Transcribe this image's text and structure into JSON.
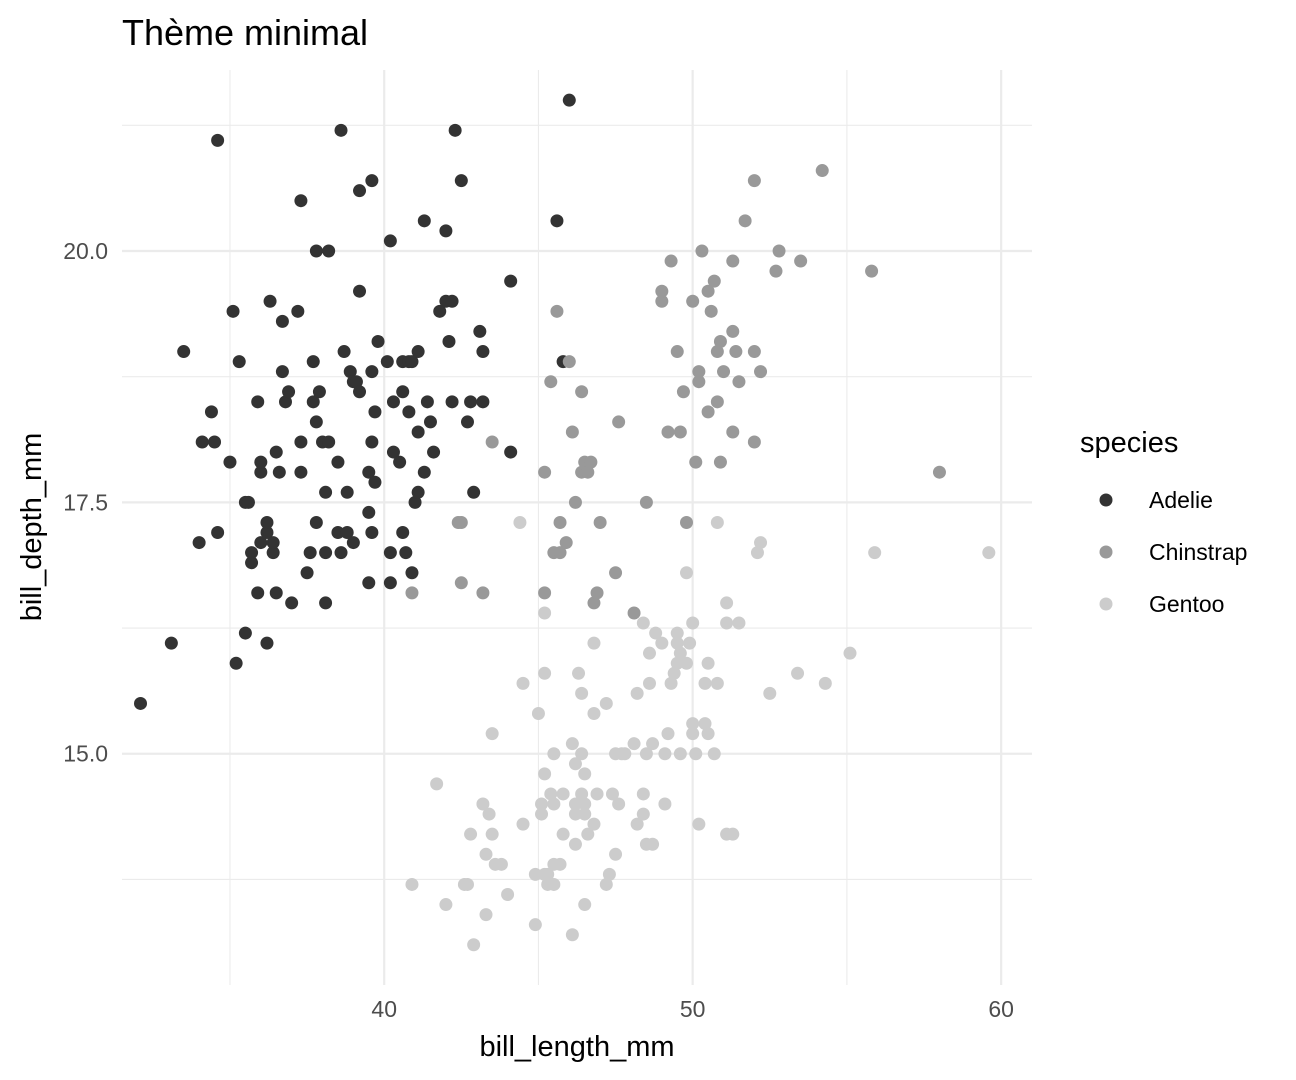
{
  "chart_data": {
    "type": "scatter",
    "title": "Thème minimal",
    "xlabel": "bill_length_mm",
    "ylabel": "bill_depth_mm",
    "xlim": [
      31.5,
      61
    ],
    "ylim": [
      12.7,
      21.8
    ],
    "x_ticks": [
      40,
      50,
      60
    ],
    "x_tick_labels": [
      "40",
      "50",
      "60"
    ],
    "y_ticks": [
      15,
      17.5,
      20
    ],
    "y_tick_labels": [
      "15.0",
      "17.5",
      "20.0"
    ],
    "grid": true,
    "legend": {
      "title": "species",
      "position": "right"
    },
    "series": [
      {
        "name": "Adelie",
        "color": "#333333",
        "points": [
          [
            32.1,
            15.5
          ],
          [
            33.1,
            16.1
          ],
          [
            33.5,
            19.0
          ],
          [
            34.0,
            17.1
          ],
          [
            34.1,
            18.1
          ],
          [
            34.4,
            18.4
          ],
          [
            34.5,
            18.1
          ],
          [
            34.6,
            17.2
          ],
          [
            34.6,
            21.1
          ],
          [
            35.0,
            17.9
          ],
          [
            35.1,
            19.4
          ],
          [
            35.2,
            15.9
          ],
          [
            35.3,
            18.9
          ],
          [
            35.5,
            16.2
          ],
          [
            35.5,
            17.5
          ],
          [
            35.6,
            17.5
          ],
          [
            35.7,
            16.9
          ],
          [
            35.7,
            17.0
          ],
          [
            35.9,
            16.6
          ],
          [
            35.9,
            18.5
          ],
          [
            36.0,
            17.1
          ],
          [
            36.0,
            17.8
          ],
          [
            36.0,
            17.9
          ],
          [
            36.2,
            16.1
          ],
          [
            36.2,
            17.2
          ],
          [
            36.2,
            17.3
          ],
          [
            36.3,
            19.5
          ],
          [
            36.4,
            17.0
          ],
          [
            36.4,
            17.1
          ],
          [
            36.5,
            16.6
          ],
          [
            36.5,
            18.0
          ],
          [
            36.6,
            17.8
          ],
          [
            36.7,
            18.8
          ],
          [
            36.7,
            19.3
          ],
          [
            36.8,
            18.5
          ],
          [
            36.9,
            18.6
          ],
          [
            37.0,
            16.5
          ],
          [
            37.2,
            19.4
          ],
          [
            37.3,
            17.8
          ],
          [
            37.3,
            18.1
          ],
          [
            37.3,
            20.5
          ],
          [
            37.5,
            16.8
          ],
          [
            37.6,
            17.0
          ],
          [
            37.7,
            18.5
          ],
          [
            37.7,
            18.9
          ],
          [
            37.8,
            17.3
          ],
          [
            37.8,
            18.3
          ],
          [
            37.8,
            20.0
          ],
          [
            37.9,
            18.6
          ],
          [
            38.0,
            18.1
          ],
          [
            38.1,
            16.5
          ],
          [
            38.1,
            17.0
          ],
          [
            38.1,
            17.6
          ],
          [
            38.2,
            18.1
          ],
          [
            38.2,
            20.0
          ],
          [
            38.5,
            17.2
          ],
          [
            38.5,
            17.9
          ],
          [
            38.6,
            17.0
          ],
          [
            38.6,
            21.2
          ],
          [
            38.7,
            19.0
          ],
          [
            38.8,
            17.2
          ],
          [
            38.8,
            17.6
          ],
          [
            38.9,
            18.8
          ],
          [
            39.0,
            17.1
          ],
          [
            39.0,
            18.7
          ],
          [
            39.1,
            18.7
          ],
          [
            39.2,
            18.6
          ],
          [
            39.2,
            19.6
          ],
          [
            39.2,
            20.6
          ],
          [
            39.5,
            16.7
          ],
          [
            39.5,
            17.4
          ],
          [
            39.5,
            17.8
          ],
          [
            39.6,
            17.2
          ],
          [
            39.6,
            18.1
          ],
          [
            39.6,
            18.8
          ],
          [
            39.6,
            20.7
          ],
          [
            39.7,
            17.7
          ],
          [
            39.7,
            18.4
          ],
          [
            39.8,
            19.1
          ],
          [
            40.1,
            18.9
          ],
          [
            40.2,
            16.7
          ],
          [
            40.2,
            17.0
          ],
          [
            40.2,
            20.1
          ],
          [
            40.3,
            18.0
          ],
          [
            40.3,
            18.5
          ],
          [
            40.5,
            17.9
          ],
          [
            40.6,
            17.2
          ],
          [
            40.6,
            18.6
          ],
          [
            40.6,
            18.9
          ],
          [
            40.7,
            17.0
          ],
          [
            40.8,
            18.4
          ],
          [
            40.8,
            18.9
          ],
          [
            40.9,
            16.8
          ],
          [
            40.9,
            18.9
          ],
          [
            41.0,
            17.5
          ],
          [
            41.1,
            17.6
          ],
          [
            41.1,
            18.2
          ],
          [
            41.1,
            19.0
          ],
          [
            41.3,
            17.8
          ],
          [
            41.3,
            20.3
          ],
          [
            41.4,
            18.5
          ],
          [
            41.5,
            18.3
          ],
          [
            41.6,
            18.0
          ],
          [
            41.8,
            19.4
          ],
          [
            42.0,
            19.5
          ],
          [
            42.0,
            20.2
          ],
          [
            42.1,
            19.1
          ],
          [
            42.2,
            19.5
          ],
          [
            42.2,
            18.5
          ],
          [
            42.3,
            21.2
          ],
          [
            42.5,
            20.7
          ],
          [
            42.7,
            18.3
          ],
          [
            42.8,
            18.5
          ],
          [
            42.9,
            17.6
          ],
          [
            43.1,
            19.2
          ],
          [
            43.2,
            19.0
          ],
          [
            43.2,
            18.5
          ],
          [
            44.1,
            18.0
          ],
          [
            44.1,
            19.7
          ],
          [
            45.6,
            20.3
          ],
          [
            45.8,
            18.9
          ],
          [
            46.0,
            21.5
          ]
        ]
      },
      {
        "name": "Chinstrap",
        "color": "#999999",
        "points": [
          [
            40.9,
            16.6
          ],
          [
            42.4,
            17.3
          ],
          [
            42.5,
            16.7
          ],
          [
            42.5,
            17.3
          ],
          [
            43.2,
            16.6
          ],
          [
            43.5,
            18.1
          ],
          [
            45.2,
            16.6
          ],
          [
            45.2,
            17.8
          ],
          [
            45.4,
            18.7
          ],
          [
            45.5,
            17.0
          ],
          [
            45.6,
            19.4
          ],
          [
            45.7,
            17.0
          ],
          [
            45.7,
            17.3
          ],
          [
            45.9,
            17.1
          ],
          [
            46.0,
            18.9
          ],
          [
            46.1,
            18.2
          ],
          [
            46.2,
            17.5
          ],
          [
            46.4,
            17.8
          ],
          [
            46.4,
            18.6
          ],
          [
            46.5,
            17.9
          ],
          [
            46.6,
            17.8
          ],
          [
            46.7,
            17.9
          ],
          [
            46.8,
            16.5
          ],
          [
            46.9,
            16.6
          ],
          [
            47.0,
            17.3
          ],
          [
            47.5,
            16.8
          ],
          [
            47.6,
            18.3
          ],
          [
            48.1,
            16.4
          ],
          [
            48.5,
            17.5
          ],
          [
            49.0,
            19.5
          ],
          [
            49.0,
            19.6
          ],
          [
            49.2,
            18.2
          ],
          [
            49.3,
            19.9
          ],
          [
            49.5,
            19.0
          ],
          [
            49.6,
            18.2
          ],
          [
            49.7,
            18.6
          ],
          [
            49.8,
            17.3
          ],
          [
            50.0,
            19.5
          ],
          [
            50.1,
            17.9
          ],
          [
            50.2,
            18.7
          ],
          [
            50.2,
            18.8
          ],
          [
            50.3,
            20.0
          ],
          [
            50.5,
            18.4
          ],
          [
            50.5,
            19.6
          ],
          [
            50.6,
            19.4
          ],
          [
            50.7,
            19.7
          ],
          [
            50.8,
            18.5
          ],
          [
            50.8,
            19.0
          ],
          [
            50.9,
            17.9
          ],
          [
            50.9,
            19.1
          ],
          [
            51.0,
            18.8
          ],
          [
            51.3,
            18.2
          ],
          [
            51.3,
            19.2
          ],
          [
            51.3,
            19.9
          ],
          [
            51.4,
            19.0
          ],
          [
            51.5,
            18.7
          ],
          [
            51.7,
            20.3
          ],
          [
            52.0,
            18.1
          ],
          [
            52.0,
            19.0
          ],
          [
            52.0,
            20.7
          ],
          [
            52.2,
            18.8
          ],
          [
            52.7,
            19.8
          ],
          [
            52.8,
            20.0
          ],
          [
            53.5,
            19.9
          ],
          [
            54.2,
            20.8
          ],
          [
            55.8,
            19.8
          ],
          [
            58.0,
            17.8
          ]
        ]
      },
      {
        "name": "Gentoo",
        "color": "#cccccc",
        "points": [
          [
            40.9,
            13.7
          ],
          [
            41.7,
            14.7
          ],
          [
            42.0,
            13.5
          ],
          [
            42.6,
            13.7
          ],
          [
            42.7,
            13.7
          ],
          [
            42.8,
            14.2
          ],
          [
            42.9,
            13.1
          ],
          [
            43.2,
            14.5
          ],
          [
            43.3,
            13.4
          ],
          [
            43.3,
            14.0
          ],
          [
            43.4,
            14.4
          ],
          [
            43.5,
            14.2
          ],
          [
            43.5,
            15.2
          ],
          [
            43.6,
            13.9
          ],
          [
            43.8,
            13.9
          ],
          [
            44.0,
            13.6
          ],
          [
            44.4,
            17.3
          ],
          [
            44.5,
            14.3
          ],
          [
            44.5,
            15.7
          ],
          [
            44.9,
            13.3
          ],
          [
            44.9,
            13.8
          ],
          [
            45.0,
            15.4
          ],
          [
            45.1,
            14.4
          ],
          [
            45.1,
            14.5
          ],
          [
            45.2,
            13.8
          ],
          [
            45.2,
            14.8
          ],
          [
            45.2,
            15.8
          ],
          [
            45.2,
            16.4
          ],
          [
            45.3,
            13.7
          ],
          [
            45.3,
            13.8
          ],
          [
            45.4,
            14.6
          ],
          [
            45.5,
            13.7
          ],
          [
            45.5,
            13.9
          ],
          [
            45.5,
            14.5
          ],
          [
            45.5,
            15.0
          ],
          [
            45.7,
            13.9
          ],
          [
            45.8,
            14.2
          ],
          [
            45.8,
            14.6
          ],
          [
            46.1,
            13.2
          ],
          [
            46.1,
            15.1
          ],
          [
            46.2,
            14.1
          ],
          [
            46.2,
            14.4
          ],
          [
            46.2,
            14.5
          ],
          [
            46.2,
            14.9
          ],
          [
            46.3,
            15.8
          ],
          [
            46.4,
            14.6
          ],
          [
            46.4,
            15.0
          ],
          [
            46.4,
            15.6
          ],
          [
            46.5,
            13.5
          ],
          [
            46.5,
            14.4
          ],
          [
            46.5,
            14.5
          ],
          [
            46.5,
            14.8
          ],
          [
            46.6,
            14.2
          ],
          [
            46.8,
            14.3
          ],
          [
            46.8,
            15.4
          ],
          [
            46.8,
            16.1
          ],
          [
            46.9,
            14.6
          ],
          [
            47.2,
            13.7
          ],
          [
            47.2,
            15.5
          ],
          [
            47.3,
            13.8
          ],
          [
            47.4,
            14.6
          ],
          [
            47.5,
            14.0
          ],
          [
            47.5,
            15.0
          ],
          [
            47.6,
            14.5
          ],
          [
            47.7,
            15.0
          ],
          [
            47.8,
            15.0
          ],
          [
            48.1,
            15.1
          ],
          [
            48.2,
            14.3
          ],
          [
            48.2,
            15.6
          ],
          [
            48.4,
            14.4
          ],
          [
            48.4,
            14.6
          ],
          [
            48.4,
            16.3
          ],
          [
            48.5,
            14.1
          ],
          [
            48.5,
            15.0
          ],
          [
            48.6,
            15.7
          ],
          [
            48.6,
            16.0
          ],
          [
            48.7,
            14.1
          ],
          [
            48.7,
            15.1
          ],
          [
            48.8,
            16.2
          ],
          [
            49.0,
            16.1
          ],
          [
            49.1,
            14.5
          ],
          [
            49.1,
            15.0
          ],
          [
            49.2,
            15.2
          ],
          [
            49.3,
            15.7
          ],
          [
            49.4,
            15.8
          ],
          [
            49.5,
            15.9
          ],
          [
            49.5,
            16.1
          ],
          [
            49.5,
            16.2
          ],
          [
            49.6,
            15.0
          ],
          [
            49.6,
            16.0
          ],
          [
            49.8,
            15.9
          ],
          [
            49.8,
            16.8
          ],
          [
            49.9,
            16.1
          ],
          [
            50.0,
            15.2
          ],
          [
            50.0,
            15.3
          ],
          [
            50.0,
            16.3
          ],
          [
            50.1,
            15.0
          ],
          [
            50.2,
            14.3
          ],
          [
            50.4,
            15.3
          ],
          [
            50.4,
            15.7
          ],
          [
            50.5,
            15.2
          ],
          [
            50.5,
            15.9
          ],
          [
            50.7,
            15.0
          ],
          [
            50.8,
            15.7
          ],
          [
            50.8,
            17.3
          ],
          [
            51.1,
            14.2
          ],
          [
            51.1,
            16.3
          ],
          [
            51.1,
            16.5
          ],
          [
            51.3,
            14.2
          ],
          [
            51.5,
            16.3
          ],
          [
            52.1,
            17.0
          ],
          [
            52.2,
            17.1
          ],
          [
            52.5,
            15.6
          ],
          [
            53.4,
            15.8
          ],
          [
            54.3,
            15.7
          ],
          [
            55.1,
            16.0
          ],
          [
            55.9,
            17.0
          ],
          [
            59.6,
            17.0
          ]
        ]
      }
    ]
  }
}
